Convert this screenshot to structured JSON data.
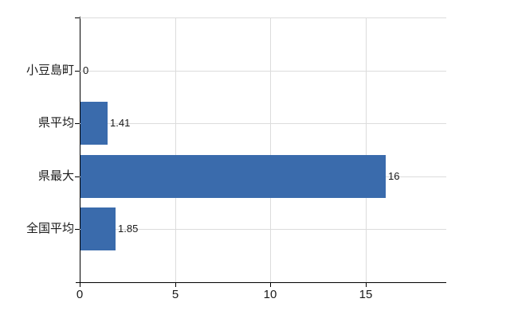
{
  "chart_data": {
    "type": "bar",
    "orientation": "horizontal",
    "title": "",
    "xlabel": "",
    "ylabel": "",
    "categories": [
      "小豆島町",
      "県平均",
      "県最大",
      "全国平均"
    ],
    "values": [
      0,
      1.41,
      16,
      1.85
    ],
    "value_labels": [
      "0",
      "1.41",
      "16",
      "1.85"
    ],
    "x_tick_labels": [
      "0",
      "5",
      "10",
      "15"
    ],
    "x_tick_values": [
      0,
      5,
      10,
      15
    ],
    "xlim": [
      0,
      19.22
    ],
    "grid": true,
    "legend": false,
    "colors": {
      "bar": "#3a6bac",
      "gridline": "#dcdcdc",
      "axis": "#000000",
      "text": "#1a1a1a",
      "background": "#ffffff"
    }
  }
}
